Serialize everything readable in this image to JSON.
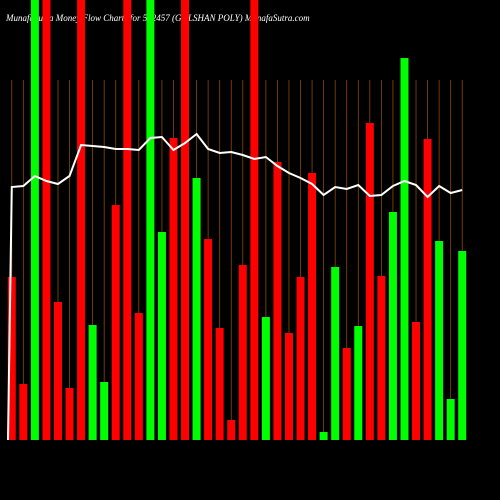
{
  "chart_data": {
    "type": "bar",
    "title": "MunafaSutra Money Flow Charts for 532457 (GULSHAN POLY) MunafaSutra.com",
    "values": [
      163,
      56,
      440,
      440,
      138,
      52,
      440,
      115,
      58,
      235,
      440,
      127,
      440,
      208,
      302,
      440,
      262,
      201,
      112,
      20,
      175,
      440,
      123,
      278,
      107,
      163,
      267,
      8,
      173,
      92,
      114,
      317,
      164,
      228,
      382,
      118,
      301,
      199,
      41,
      189
    ],
    "colors": [
      "#ff0000",
      "#ff0000",
      "#00ff00",
      "#ff0000",
      "#ff0000",
      "#ff0000",
      "#ff0000",
      "#00ff00",
      "#00ff00",
      "#ff0000",
      "#ff0000",
      "#ff0000",
      "#00ff00",
      "#00ff00",
      "#ff0000",
      "#ff0000",
      "#00ff00",
      "#ff0000",
      "#ff0000",
      "#ff0000",
      "#ff0000",
      "#ff0000",
      "#00ff00",
      "#ff0000",
      "#ff0000",
      "#ff0000",
      "#ff0000",
      "#00ff00",
      "#00ff00",
      "#ff0000",
      "#00ff00",
      "#ff0000",
      "#ff0000",
      "#00ff00",
      "#00ff00",
      "#ff0000",
      "#ff0000",
      "#00ff00",
      "#00ff00",
      "#00ff00"
    ],
    "line": {
      "color": "#ffffff",
      "values": [
        253,
        254,
        264,
        259,
        256,
        264,
        295,
        294,
        293,
        291,
        291,
        290,
        302,
        303,
        290,
        297,
        306,
        291,
        287,
        288,
        285,
        281,
        283,
        274,
        267,
        262,
        256,
        245,
        253,
        251,
        255,
        244,
        245,
        254,
        259,
        255,
        243,
        254,
        247,
        250
      ]
    },
    "ylim": [
      0,
      440
    ]
  }
}
